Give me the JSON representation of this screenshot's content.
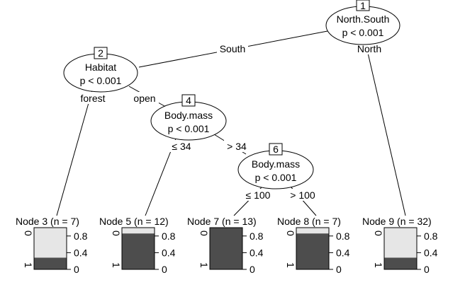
{
  "colors": {
    "dark": "#4d4d4d",
    "light": "#e6e6e6",
    "line": "#000000"
  },
  "inner_nodes": [
    {
      "id": "1",
      "variable": "North.South",
      "pvalue": "p < 0.001"
    },
    {
      "id": "2",
      "variable": "Habitat",
      "pvalue": "p < 0.001"
    },
    {
      "id": "4",
      "variable": "Body.mass",
      "pvalue": "p < 0.001"
    },
    {
      "id": "6",
      "variable": "Body.mass",
      "pvalue": "p < 0.001"
    }
  ],
  "edge_labels": [
    {
      "text": "South"
    },
    {
      "text": "North"
    },
    {
      "text": "forest"
    },
    {
      "text": "open"
    },
    {
      "text": "≤ 34"
    },
    {
      "text": "> 34"
    },
    {
      "text": "≤ 100"
    },
    {
      "text": "> 100"
    }
  ],
  "terminal_nodes": [
    {
      "title": "Node 3 (n = 7)",
      "dark_fraction": 0.28
    },
    {
      "title": "Node 5 (n = 12)",
      "dark_fraction": 0.86
    },
    {
      "title": "Node 7 (n = 13)",
      "dark_fraction": 1.0
    },
    {
      "title": "Node 8 (n = 7)",
      "dark_fraction": 0.86
    },
    {
      "title": "Node 9 (n = 32)",
      "dark_fraction": 0.28
    }
  ],
  "bar_axis": {
    "ticks": [
      "0.8",
      "0.4",
      "0"
    ],
    "cat_top": "0",
    "cat_bottom": "1"
  }
}
